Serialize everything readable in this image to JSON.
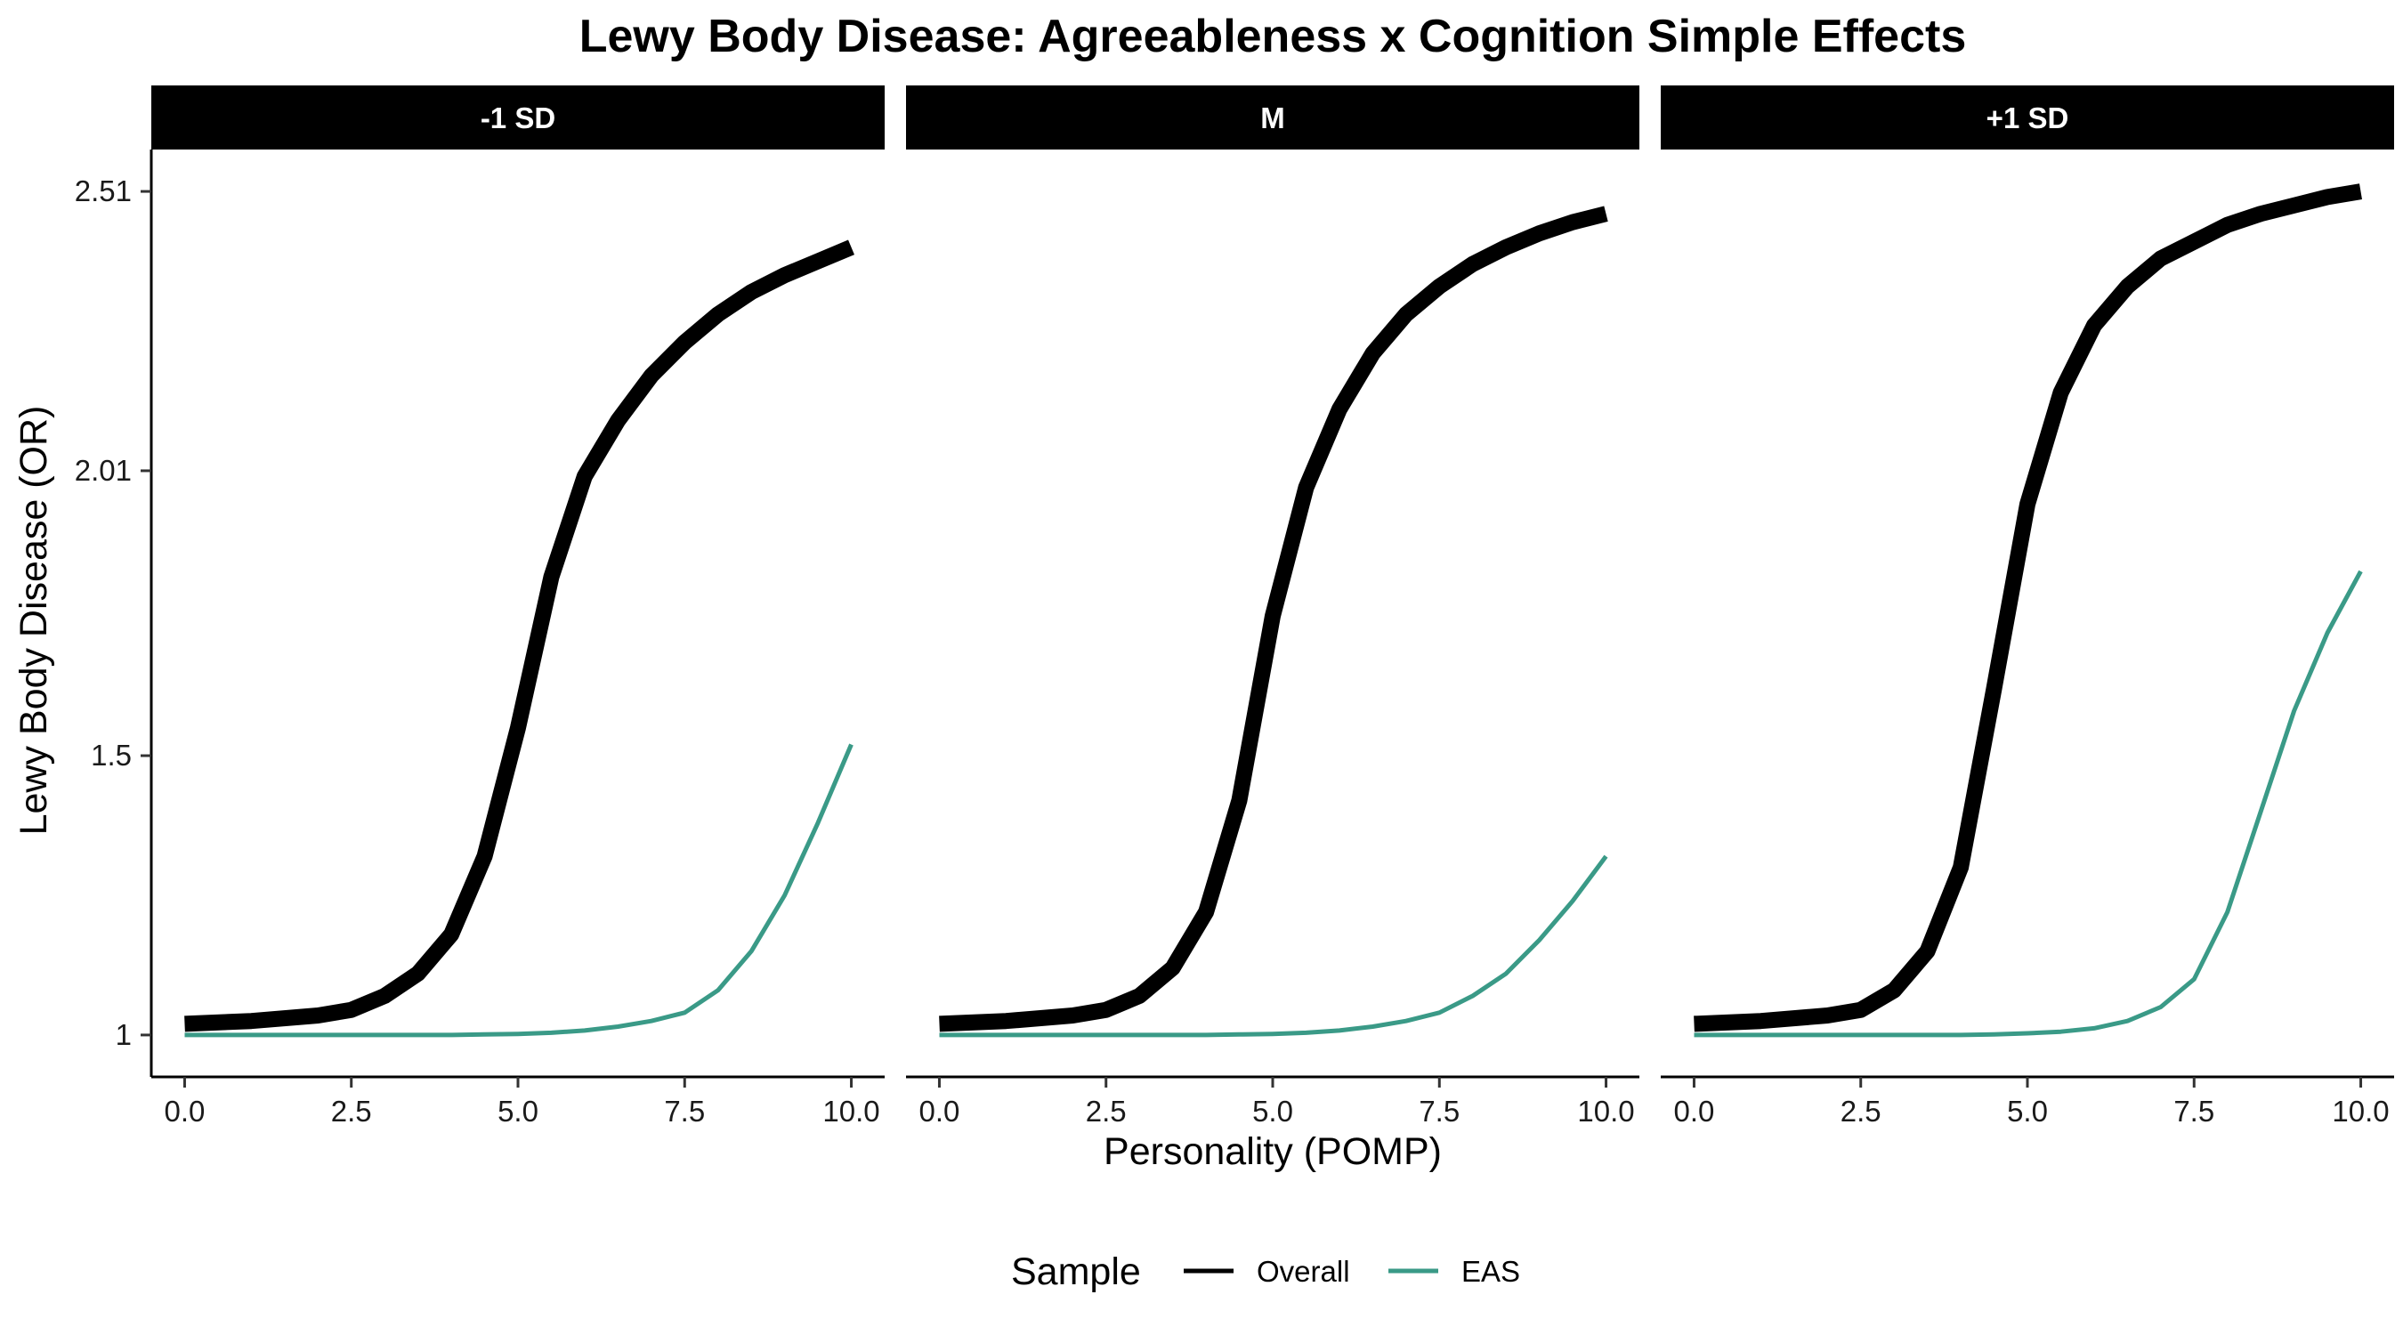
{
  "chart_data": {
    "type": "line",
    "title": "Lewy Body Disease: Agreeableness x Cognition Simple Effects",
    "xlabel": "Personality (POMP)",
    "ylabel": "Lewy Body Disease (OR)",
    "xlim": [
      -0.5,
      10.5
    ],
    "ylim": [
      0.925,
      2.585
    ],
    "x_ticks": [
      0,
      2.5,
      5,
      7.5,
      10
    ],
    "x_tick_labels": [
      "0.0",
      "2.5",
      "5.0",
      "7.5",
      "10.0"
    ],
    "y_ticks": [
      1,
      1.5,
      2.01,
      2.51
    ],
    "y_tick_labels": [
      "1",
      "1.5",
      "2.01",
      "2.51"
    ],
    "grid": false,
    "legend": {
      "title": "Sample",
      "placement": "bottom",
      "entries": [
        {
          "name": "Overall",
          "color": "#000000"
        },
        {
          "name": "EAS",
          "color": "#3a9a87"
        }
      ]
    },
    "x": [
      0,
      1,
      2,
      2.5,
      3,
      3.5,
      4,
      4.5,
      5,
      5.5,
      6,
      6.5,
      7,
      7.5,
      8,
      8.5,
      9,
      9.5,
      10
    ],
    "panels": [
      {
        "label": "-1 SD",
        "series": [
          {
            "name": "Overall",
            "values": [
              1.02,
              1.025,
              1.035,
              1.045,
              1.07,
              1.11,
              1.18,
              1.32,
              1.55,
              1.82,
              2.0,
              2.1,
              2.18,
              2.24,
              2.29,
              2.33,
              2.36,
              2.385,
              2.41
            ]
          },
          {
            "name": "EAS",
            "values": [
              1.0,
              1.0,
              1.0,
              1.0,
              1.0,
              1.0,
              1.0,
              1.001,
              1.002,
              1.004,
              1.008,
              1.015,
              1.025,
              1.04,
              1.08,
              1.15,
              1.25,
              1.38,
              1.52
            ]
          }
        ]
      },
      {
        "label": "M",
        "series": [
          {
            "name": "Overall",
            "values": [
              1.02,
              1.025,
              1.035,
              1.045,
              1.07,
              1.12,
              1.22,
              1.42,
              1.75,
              1.98,
              2.12,
              2.22,
              2.29,
              2.34,
              2.38,
              2.41,
              2.435,
              2.455,
              2.47
            ]
          },
          {
            "name": "EAS",
            "values": [
              1.0,
              1.0,
              1.0,
              1.0,
              1.0,
              1.0,
              1.0,
              1.001,
              1.002,
              1.004,
              1.008,
              1.015,
              1.025,
              1.04,
              1.07,
              1.11,
              1.17,
              1.24,
              1.32
            ]
          }
        ]
      },
      {
        "label": "+1 SD",
        "series": [
          {
            "name": "Overall",
            "values": [
              1.02,
              1.025,
              1.035,
              1.045,
              1.08,
              1.15,
              1.3,
              1.62,
              1.95,
              2.15,
              2.27,
              2.34,
              2.39,
              2.42,
              2.45,
              2.47,
              2.485,
              2.5,
              2.51
            ]
          },
          {
            "name": "EAS",
            "values": [
              1.0,
              1.0,
              1.0,
              1.0,
              1.0,
              1.0,
              1.0,
              1.001,
              1.003,
              1.006,
              1.012,
              1.025,
              1.05,
              1.1,
              1.22,
              1.4,
              1.58,
              1.72,
              1.83
            ]
          }
        ]
      }
    ]
  }
}
